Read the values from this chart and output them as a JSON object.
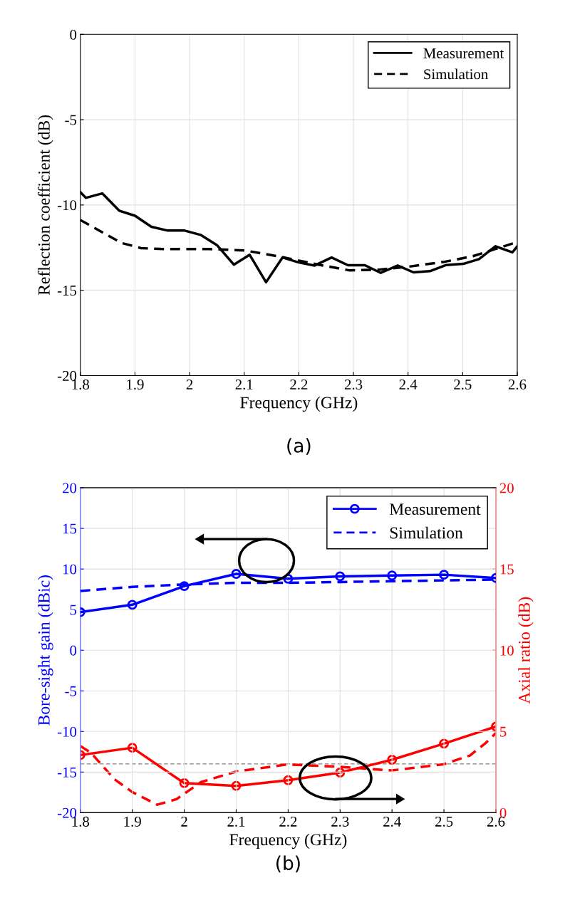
{
  "chart_data": [
    {
      "type": "line",
      "xlabel": "Frequency (GHz)",
      "ylabel": "Reflection coefficient (dB)",
      "xlim": [
        1.8,
        2.6
      ],
      "xticks": [
        1.8,
        1.9,
        2,
        2.1,
        2.2,
        2.3,
        2.4,
        2.5,
        2.6
      ],
      "ylim": [
        -20,
        0
      ],
      "yticks": [
        -20,
        -15,
        -10,
        -5,
        0
      ],
      "grid": true,
      "legend": "top right",
      "annotations": [
        "(a)"
      ],
      "series": [
        {
          "name": "Measurement",
          "color": "#000000",
          "line_style": "solid",
          "x": [
            1.8,
            1.81,
            1.84,
            1.871,
            1.9,
            1.93,
            1.96,
            1.991,
            2.02,
            2.05,
            2.081,
            2.11,
            2.14,
            2.17,
            2.2,
            2.229,
            2.26,
            2.29,
            2.321,
            2.35,
            2.381,
            2.41,
            2.44,
            2.47,
            2.501,
            2.53,
            2.56,
            2.591,
            2.6
          ],
          "values": [
            -9.25,
            -9.58,
            -9.32,
            -10.33,
            -10.63,
            -11.28,
            -11.5,
            -11.5,
            -11.75,
            -12.35,
            -13.5,
            -12.92,
            -14.53,
            -13.08,
            -13.37,
            -13.55,
            -13.08,
            -13.53,
            -13.53,
            -13.98,
            -13.55,
            -13.95,
            -13.88,
            -13.52,
            -13.45,
            -13.17,
            -12.42,
            -12.78,
            -12.42
          ]
        },
        {
          "name": "Simulation",
          "color": "#000000",
          "line_style": "dashed",
          "x": [
            1.8,
            1.839,
            1.875,
            1.911,
            1.952,
            2.035,
            2.102,
            2.169,
            2.236,
            2.292,
            2.344,
            2.4,
            2.467,
            2.519,
            2.56,
            2.6
          ],
          "values": [
            -10.88,
            -11.58,
            -12.22,
            -12.53,
            -12.58,
            -12.58,
            -12.67,
            -13.05,
            -13.5,
            -13.83,
            -13.8,
            -13.62,
            -13.33,
            -13.0,
            -12.58,
            -12.17
          ]
        }
      ]
    },
    {
      "type": "line",
      "xlabel": "Frequency (GHz)",
      "ylabel": "Bore-sight gain (dBic)",
      "y2label": "Axial ratio (dB)",
      "xlim": [
        1.8,
        2.6
      ],
      "xticks": [
        1.8,
        1.9,
        2,
        2.1,
        2.2,
        2.3,
        2.4,
        2.5,
        2.6
      ],
      "ylim": [
        -20,
        20
      ],
      "yticks": [
        -20,
        -15,
        -10,
        -5,
        0,
        5,
        10,
        15,
        20
      ],
      "y2lim": [
        0,
        20
      ],
      "y2ticks": [
        0,
        5,
        10,
        15,
        20
      ],
      "grid": true,
      "legend": "top right",
      "annotations": [
        "(b)"
      ],
      "ref_lines": [
        {
          "axis": "y2",
          "value": 3,
          "color": "#808080",
          "line_style": "dashed"
        }
      ],
      "series": [
        {
          "name": "Measurement",
          "color": "#0000ff",
          "line_style": "solid",
          "marker": "circle",
          "x": [
            1.8,
            1.9,
            2.0,
            2.1,
            2.2,
            2.3,
            2.4,
            2.5,
            2.6
          ],
          "values": [
            4.7,
            5.6,
            7.9,
            9.4,
            8.8,
            9.1,
            9.2,
            9.3,
            8.9
          ]
        },
        {
          "name": "Simulation",
          "color": "#0000ff",
          "line_style": "dashed",
          "x": [
            1.8,
            1.9,
            2.0,
            2.1,
            2.2,
            2.3,
            2.4,
            2.5,
            2.6
          ],
          "values": [
            7.3,
            7.8,
            8.1,
            8.3,
            8.3,
            8.4,
            8.5,
            8.6,
            8.7
          ]
        },
        {
          "color": "#ff0000",
          "axis": "y2",
          "line_style": "solid",
          "marker": "circle",
          "x": [
            1.8,
            1.9,
            2.0,
            2.1,
            2.2,
            2.3,
            2.4,
            2.5,
            2.6
          ],
          "values": [
            3.55,
            4.0,
            1.82,
            1.65,
            2.0,
            2.47,
            3.26,
            4.25,
            5.3
          ]
        },
        {
          "color": "#ff0000",
          "axis": "y2",
          "line_style": "dashed",
          "x": [
            1.8,
            1.82,
            1.866,
            1.9,
            1.948,
            1.985,
            2.032,
            2.1,
            2.198,
            2.296,
            2.399,
            2.498,
            2.55,
            2.581,
            2.6
          ],
          "values": [
            4.1,
            3.7,
            2.05,
            1.27,
            0.49,
            0.83,
            1.88,
            2.53,
            2.97,
            2.83,
            2.6,
            2.97,
            3.52,
            4.31,
            4.9
          ]
        }
      ]
    }
  ]
}
